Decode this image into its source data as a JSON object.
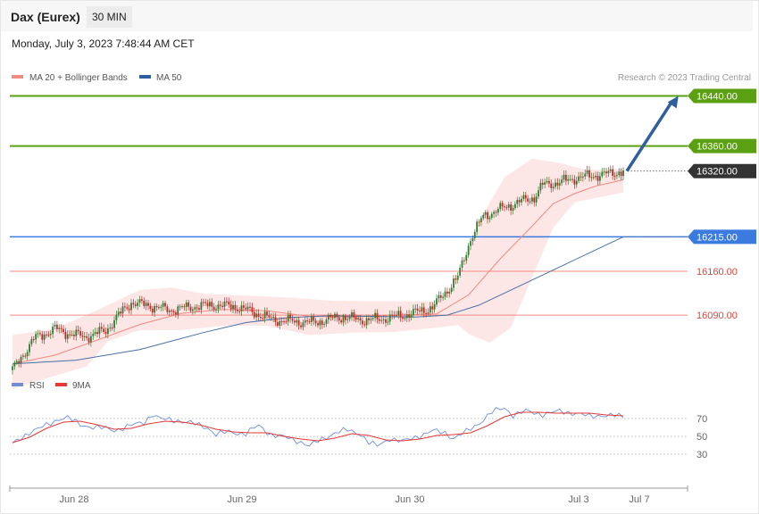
{
  "header": {
    "title": "Dax (Eurex)",
    "timeframe": "30 MIN",
    "datetime": "Monday, July 3, 2023 7:48:44 AM CET"
  },
  "main_legend": [
    {
      "label": "MA 20 + Bollinger Bands",
      "color": "#f28b82"
    },
    {
      "label": "MA 50",
      "color": "#2f5f9e"
    }
  ],
  "copyright": "Research © 2023 Trading Central",
  "colors": {
    "up_candle": "#2e7d32",
    "down_candle": "#c62828",
    "bollinger_fill": "#fde2e2",
    "ma20": "#f28b82",
    "ma50": "#4a6fa5",
    "green_level": "#5aa012",
    "blue_level": "#3b7be0",
    "red_level": "#f28b82",
    "current_price": "#333333",
    "arrow": "#2f5f9e",
    "rsi": "#6f8fd8",
    "rsi_ma": "#e53935"
  },
  "chart_data": {
    "type": "candlestick",
    "instrument": "Dax (Eurex)",
    "interval": "30 MIN",
    "ylim": [
      16016,
      16445
    ],
    "x_ticks": [
      "Jun 28",
      "Jun 29",
      "Jun 30",
      "Jul 3",
      "Jul 7"
    ],
    "price_levels": [
      {
        "value": 16440,
        "label": "16440.00",
        "kind": "resistance"
      },
      {
        "value": 16360,
        "label": "16360.00",
        "kind": "resistance"
      },
      {
        "value": 16320,
        "label": "16320.00",
        "kind": "current"
      },
      {
        "value": 16215,
        "label": "16215.00",
        "kind": "pivot"
      },
      {
        "value": 16160,
        "label": "16160.00",
        "kind": "support"
      },
      {
        "value": 16090,
        "label": "16090.00",
        "kind": "support"
      }
    ],
    "close_path": [
      {
        "x": 0,
        "y": 16002
      },
      {
        "x": 10,
        "y": 16052
      },
      {
        "x": 20,
        "y": 16068
      },
      {
        "x": 24,
        "y": 16063
      },
      {
        "x": 34,
        "y": 16055
      },
      {
        "x": 44,
        "y": 16065
      },
      {
        "x": 50,
        "y": 16090
      },
      {
        "x": 56,
        "y": 16110
      },
      {
        "x": 66,
        "y": 16104
      },
      {
        "x": 74,
        "y": 16098
      },
      {
        "x": 86,
        "y": 16104
      },
      {
        "x": 96,
        "y": 16106
      },
      {
        "x": 106,
        "y": 16103
      },
      {
        "x": 114,
        "y": 16094
      },
      {
        "x": 122,
        "y": 16083
      },
      {
        "x": 132,
        "y": 16080
      },
      {
        "x": 142,
        "y": 16078
      },
      {
        "x": 150,
        "y": 16084
      },
      {
        "x": 156,
        "y": 16087
      },
      {
        "x": 164,
        "y": 16082
      },
      {
        "x": 172,
        "y": 16083
      },
      {
        "x": 182,
        "y": 16088
      },
      {
        "x": 190,
        "y": 16094
      },
      {
        "x": 198,
        "y": 16102
      },
      {
        "x": 210,
        "y": 16150
      },
      {
        "x": 216,
        "y": 16212
      },
      {
        "x": 222,
        "y": 16248
      },
      {
        "x": 232,
        "y": 16262
      },
      {
        "x": 240,
        "y": 16272
      },
      {
        "x": 246,
        "y": 16278
      },
      {
        "x": 250,
        "y": 16298
      },
      {
        "x": 258,
        "y": 16302
      },
      {
        "x": 266,
        "y": 16309
      },
      {
        "x": 274,
        "y": 16313
      },
      {
        "x": 282,
        "y": 16316
      },
      {
        "x": 288,
        "y": 16320
      }
    ],
    "ma20_path": [
      {
        "x": 0,
        "y": 16012
      },
      {
        "x": 20,
        "y": 16026
      },
      {
        "x": 40,
        "y": 16050
      },
      {
        "x": 60,
        "y": 16075
      },
      {
        "x": 80,
        "y": 16093
      },
      {
        "x": 100,
        "y": 16099
      },
      {
        "x": 120,
        "y": 16097
      },
      {
        "x": 140,
        "y": 16088
      },
      {
        "x": 160,
        "y": 16087
      },
      {
        "x": 180,
        "y": 16090
      },
      {
        "x": 200,
        "y": 16092
      },
      {
        "x": 215,
        "y": 16122
      },
      {
        "x": 230,
        "y": 16180
      },
      {
        "x": 245,
        "y": 16232
      },
      {
        "x": 255,
        "y": 16268
      },
      {
        "x": 265,
        "y": 16284
      },
      {
        "x": 275,
        "y": 16296
      },
      {
        "x": 288,
        "y": 16306
      }
    ],
    "ma50_path": [
      {
        "x": 0,
        "y": 16012
      },
      {
        "x": 30,
        "y": 16018
      },
      {
        "x": 60,
        "y": 16035
      },
      {
        "x": 90,
        "y": 16062
      },
      {
        "x": 110,
        "y": 16078
      },
      {
        "x": 130,
        "y": 16086
      },
      {
        "x": 150,
        "y": 16089
      },
      {
        "x": 170,
        "y": 16088
      },
      {
        "x": 190,
        "y": 16087
      },
      {
        "x": 205,
        "y": 16090
      },
      {
        "x": 220,
        "y": 16106
      },
      {
        "x": 240,
        "y": 16138
      },
      {
        "x": 260,
        "y": 16170
      },
      {
        "x": 275,
        "y": 16194
      },
      {
        "x": 288,
        "y": 16215
      }
    ],
    "upper_band_path": [
      {
        "x": 0,
        "y": 16058
      },
      {
        "x": 20,
        "y": 16068
      },
      {
        "x": 40,
        "y": 16098
      },
      {
        "x": 60,
        "y": 16130
      },
      {
        "x": 75,
        "y": 16134
      },
      {
        "x": 90,
        "y": 16124
      },
      {
        "x": 110,
        "y": 16121
      },
      {
        "x": 130,
        "y": 16118
      },
      {
        "x": 150,
        "y": 16113
      },
      {
        "x": 170,
        "y": 16112
      },
      {
        "x": 190,
        "y": 16112
      },
      {
        "x": 200,
        "y": 16112
      },
      {
        "x": 210,
        "y": 16140
      },
      {
        "x": 220,
        "y": 16240
      },
      {
        "x": 232,
        "y": 16310
      },
      {
        "x": 245,
        "y": 16340
      },
      {
        "x": 258,
        "y": 16333
      },
      {
        "x": 270,
        "y": 16322
      },
      {
        "x": 280,
        "y": 16322
      },
      {
        "x": 288,
        "y": 16324
      }
    ],
    "lower_band_path": [
      {
        "x": 0,
        "y": 15972
      },
      {
        "x": 15,
        "y": 15988
      },
      {
        "x": 35,
        "y": 16008
      },
      {
        "x": 45,
        "y": 16048
      },
      {
        "x": 60,
        "y": 16066
      },
      {
        "x": 80,
        "y": 16066
      },
      {
        "x": 100,
        "y": 16073
      },
      {
        "x": 120,
        "y": 16073
      },
      {
        "x": 140,
        "y": 16058
      },
      {
        "x": 160,
        "y": 16062
      },
      {
        "x": 180,
        "y": 16063
      },
      {
        "x": 200,
        "y": 16070
      },
      {
        "x": 210,
        "y": 16074
      },
      {
        "x": 215,
        "y": 16060
      },
      {
        "x": 225,
        "y": 16046
      },
      {
        "x": 235,
        "y": 16070
      },
      {
        "x": 245,
        "y": 16150
      },
      {
        "x": 255,
        "y": 16230
      },
      {
        "x": 265,
        "y": 16270
      },
      {
        "x": 275,
        "y": 16277
      },
      {
        "x": 288,
        "y": 16286
      }
    ],
    "forecast_arrow": {
      "from": {
        "x": 288,
        "y": 16320
      },
      "to": {
        "x": 314,
        "y": 16440
      }
    },
    "rsi_panel": {
      "legend": [
        {
          "label": "RSI",
          "color": "#6f8fd8"
        },
        {
          "label": "9MA",
          "color": "#e53935"
        }
      ],
      "ylim": [
        15,
        95
      ],
      "levels": [
        70,
        50,
        30
      ],
      "rsi_path": [
        {
          "x": 0,
          "y": 41
        },
        {
          "x": 8,
          "y": 55
        },
        {
          "x": 16,
          "y": 62
        },
        {
          "x": 22,
          "y": 70
        },
        {
          "x": 26,
          "y": 71
        },
        {
          "x": 32,
          "y": 63
        },
        {
          "x": 40,
          "y": 60
        },
        {
          "x": 48,
          "y": 57
        },
        {
          "x": 56,
          "y": 62
        },
        {
          "x": 62,
          "y": 66
        },
        {
          "x": 66,
          "y": 75
        },
        {
          "x": 70,
          "y": 69
        },
        {
          "x": 78,
          "y": 68
        },
        {
          "x": 84,
          "y": 65
        },
        {
          "x": 92,
          "y": 60
        },
        {
          "x": 96,
          "y": 52
        },
        {
          "x": 102,
          "y": 55
        },
        {
          "x": 110,
          "y": 53
        },
        {
          "x": 116,
          "y": 62
        },
        {
          "x": 122,
          "y": 52
        },
        {
          "x": 130,
          "y": 48
        },
        {
          "x": 136,
          "y": 44
        },
        {
          "x": 140,
          "y": 39
        },
        {
          "x": 146,
          "y": 47
        },
        {
          "x": 152,
          "y": 54
        },
        {
          "x": 158,
          "y": 57
        },
        {
          "x": 164,
          "y": 53
        },
        {
          "x": 168,
          "y": 43
        },
        {
          "x": 172,
          "y": 39
        },
        {
          "x": 178,
          "y": 48
        },
        {
          "x": 184,
          "y": 44
        },
        {
          "x": 192,
          "y": 51
        },
        {
          "x": 198,
          "y": 56
        },
        {
          "x": 204,
          "y": 54
        },
        {
          "x": 208,
          "y": 48
        },
        {
          "x": 214,
          "y": 55
        },
        {
          "x": 220,
          "y": 65
        },
        {
          "x": 226,
          "y": 77
        },
        {
          "x": 232,
          "y": 82
        },
        {
          "x": 236,
          "y": 74
        },
        {
          "x": 242,
          "y": 78
        },
        {
          "x": 250,
          "y": 75
        },
        {
          "x": 258,
          "y": 78
        },
        {
          "x": 266,
          "y": 76
        },
        {
          "x": 272,
          "y": 72
        },
        {
          "x": 278,
          "y": 74
        },
        {
          "x": 284,
          "y": 73
        },
        {
          "x": 288,
          "y": 72
        }
      ],
      "ma_path": [
        {
          "x": 0,
          "y": 43
        },
        {
          "x": 8,
          "y": 49
        },
        {
          "x": 16,
          "y": 59
        },
        {
          "x": 24,
          "y": 66
        },
        {
          "x": 32,
          "y": 67
        },
        {
          "x": 40,
          "y": 63
        },
        {
          "x": 48,
          "y": 58
        },
        {
          "x": 56,
          "y": 59
        },
        {
          "x": 64,
          "y": 64
        },
        {
          "x": 72,
          "y": 67
        },
        {
          "x": 80,
          "y": 66
        },
        {
          "x": 88,
          "y": 63
        },
        {
          "x": 96,
          "y": 58
        },
        {
          "x": 104,
          "y": 55
        },
        {
          "x": 112,
          "y": 54
        },
        {
          "x": 120,
          "y": 54
        },
        {
          "x": 128,
          "y": 50
        },
        {
          "x": 136,
          "y": 47
        },
        {
          "x": 144,
          "y": 45
        },
        {
          "x": 152,
          "y": 48
        },
        {
          "x": 160,
          "y": 53
        },
        {
          "x": 168,
          "y": 51
        },
        {
          "x": 176,
          "y": 46
        },
        {
          "x": 184,
          "y": 45
        },
        {
          "x": 192,
          "y": 47
        },
        {
          "x": 200,
          "y": 51
        },
        {
          "x": 208,
          "y": 52
        },
        {
          "x": 216,
          "y": 54
        },
        {
          "x": 224,
          "y": 62
        },
        {
          "x": 232,
          "y": 72
        },
        {
          "x": 240,
          "y": 77
        },
        {
          "x": 248,
          "y": 77
        },
        {
          "x": 256,
          "y": 76
        },
        {
          "x": 264,
          "y": 76
        },
        {
          "x": 272,
          "y": 76
        },
        {
          "x": 280,
          "y": 74
        },
        {
          "x": 288,
          "y": 73
        }
      ]
    }
  }
}
